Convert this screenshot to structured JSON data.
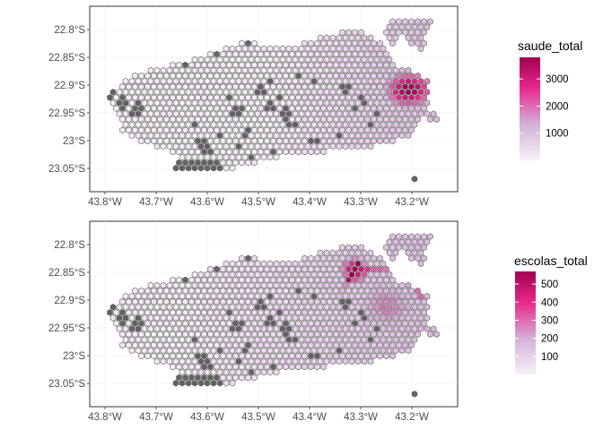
{
  "chart_data": [
    {
      "type": "heatmap",
      "title": "",
      "xlabel": "",
      "ylabel": "",
      "x_ticks": [
        "43.8°W",
        "43.7°W",
        "43.6°W",
        "43.5°W",
        "43.4°W",
        "43.3°W",
        "43.2°W"
      ],
      "y_ticks": [
        "22.8°S",
        "22.85°S",
        "22.9°S",
        "22.95°S",
        "23°S",
        "23.05°S"
      ],
      "legend": {
        "title": "saude_total",
        "labels": [
          "3000",
          "2000",
          "1000"
        ],
        "range": [
          0,
          3800
        ],
        "placement": "right"
      },
      "fill_colors": {
        "low": "#f7f1f8",
        "mid": "#cf9fcf",
        "high": "#e7298a",
        "max": "#980043",
        "missing": "#636363"
      },
      "grid": true
    },
    {
      "type": "heatmap",
      "title": "",
      "xlabel": "",
      "ylabel": "",
      "x_ticks": [
        "43.8°W",
        "43.7°W",
        "43.6°W",
        "43.5°W",
        "43.4°W",
        "43.3°W",
        "43.2°W"
      ],
      "y_ticks": [
        "22.8°S",
        "22.85°S",
        "22.9°S",
        "22.95°S",
        "23°S",
        "23.05°S"
      ],
      "legend": {
        "title": "escolas_total",
        "labels": [
          "500",
          "400",
          "300",
          "200",
          "100"
        ],
        "range": [
          0,
          570
        ],
        "placement": "right"
      },
      "fill_colors": {
        "low": "#f7f1f8",
        "mid": "#cf9fcf",
        "high": "#e7298a",
        "max": "#980043",
        "missing": "#636363"
      },
      "grid": true
    }
  ]
}
